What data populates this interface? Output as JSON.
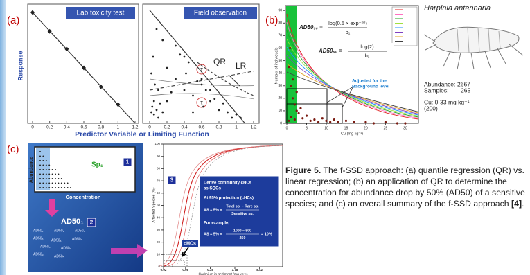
{
  "panels": {
    "a": {
      "label": "(a)",
      "x_label": "Predictor Variable or Limiting Function",
      "lab": {
        "type": "line",
        "title": "Lab toxicity test",
        "y_label": "Response",
        "x": [
          0,
          0.2,
          0.4,
          0.6,
          0.8,
          1.0
        ],
        "values": [
          1,
          0.83,
          0.67,
          0.5,
          0.33,
          0.17
        ],
        "xlim": [
          0,
          1.2
        ],
        "ylim": [
          0,
          1.05
        ],
        "xticks": [
          0,
          0.2,
          0.4,
          0.6,
          0.8,
          1,
          1.2
        ]
      },
      "field": {
        "type": "scatter",
        "title": "Field observation",
        "qr_label": "QR",
        "lr_label": "LR",
        "quantile_marks": [
          "τ",
          "τ"
        ],
        "x": [
          0.02,
          0.03,
          0.05,
          0.05,
          0.08,
          0.1,
          0.12,
          0.15,
          0.02,
          0.04,
          0.06,
          0.1,
          0.2,
          0.25,
          0.3,
          0.35,
          0.4,
          0.42,
          0.45,
          0.5,
          0.55,
          0.6,
          0.62,
          0.65,
          0.7,
          0.75,
          0.8,
          0.85,
          0.9,
          0.95,
          0.3,
          0.4,
          0.5,
          0.15,
          0.2,
          0.08,
          0.6,
          0.7,
          1.0,
          1.05
        ],
        "y": [
          0.1,
          0.15,
          0.08,
          0.2,
          0.12,
          0.05,
          0.18,
          0.1,
          0.45,
          0.6,
          0.35,
          0.3,
          0.5,
          0.28,
          0.4,
          0.62,
          0.3,
          0.45,
          0.55,
          0.25,
          0.38,
          0.35,
          0.15,
          0.3,
          0.2,
          0.22,
          0.12,
          0.18,
          0.1,
          0.05,
          0.7,
          0.6,
          0.1,
          0.75,
          0.2,
          0.85,
          0.4,
          0.3,
          0.08,
          0.05
        ],
        "xlim": [
          0,
          1.2
        ],
        "ylim": [
          0,
          1.05
        ],
        "xticks": [
          0,
          0.2,
          0.4,
          0.6,
          0.8,
          1,
          1.2
        ]
      }
    },
    "b": {
      "label": "(b)",
      "type": "scatter",
      "y_label": "Number of individuals",
      "x_label": "Cu (mg kg⁻¹)",
      "x": [
        0.5,
        1,
        1.5,
        2,
        2.5,
        1,
        2,
        0.5,
        3,
        4,
        5,
        6,
        7,
        8,
        9,
        10,
        11,
        12,
        13,
        15,
        17,
        20,
        22,
        25,
        28,
        30,
        1.5,
        2.5,
        3.5,
        0.8
      ],
      "y": [
        45,
        30,
        20,
        15,
        10,
        5,
        3,
        2,
        8,
        4,
        6,
        2,
        3,
        1,
        4,
        2,
        1,
        3,
        1,
        2,
        1,
        1,
        0,
        1,
        0,
        0,
        35,
        25,
        12,
        60
      ],
      "xlim": [
        0,
        33
      ],
      "ylim": [
        0,
        94
      ],
      "xticks": [
        0,
        5,
        10,
        15,
        20,
        25,
        30
      ],
      "yticks": [
        0,
        10,
        20,
        30,
        40,
        50,
        60,
        70,
        80,
        90
      ],
      "formula_1": {
        "lhs": "AD50₉₀ =",
        "numerator": "log(0.5 × exp⁻ᵇ⁰)",
        "denominator": "b₁"
      },
      "formula_2": {
        "lhs": "AD50₉₀ =",
        "numerator": "log(2)",
        "denominator": "b₁"
      },
      "annotation": [
        "Adjusted for the",
        "Background level"
      ],
      "species": {
        "name": "Harpinia antennaria",
        "abundance_label": "Abundance:",
        "abundance": 2667,
        "samples_label": "Samples:",
        "samples": 265,
        "cu": "Cu: 0-33 mg kg⁻¹",
        "count": "(200)"
      }
    },
    "c": {
      "label": "(c)",
      "step_1": {
        "number": 1,
        "species": "Sp₁",
        "y_label": "Abundance",
        "x_label": "Concentration"
      },
      "step_2": {
        "number": 2,
        "main": "AD50₁",
        "others": [
          "AD50₂",
          "AD50₃",
          "AD50₄",
          "AD50₅",
          "AD50₆",
          "AD50₇",
          "AD50₈",
          "AD50₉",
          "AD50₁₀",
          "AD50ₙ"
        ]
      },
      "step_3": {
        "number": 3,
        "type": "ssd",
        "y_label": "Affected Species (%)",
        "x_label": "Cadmium in sediment (mg kg⁻¹)",
        "ylim": [
          0,
          100
        ],
        "yticks": [
          0,
          10,
          20,
          30,
          40,
          50,
          60,
          70,
          80,
          90,
          100
        ],
        "xlim": [
          0.02,
          36
        ],
        "xticks": [
          0.02,
          0.08,
          0.38,
          1.78,
          8.42
        ],
        "log_x": true,
        "box_title": [
          "Derive community cHCs",
          "as SQGs"
        ],
        "box_protection": "At 95% protection (cHCs)",
        "box_example": "For example,",
        "formula_1": {
          "lhs": "AS = 5% ×",
          "numerator": "Total sp. – Rare sp.",
          "denominator": "Sensitive sp."
        },
        "formula_2": {
          "lhs": "AS = 5% ×",
          "numerator": "1000 – 500",
          "denominator": "250",
          "result": "= 10%"
        },
        "marker": "cHCs"
      }
    }
  },
  "caption": {
    "label": "Figure 5.",
    "text": " The f-SSD approach: (a) quantile regression (QR) vs. linear regression; (b) an application of QR to determine the concentration for abundance drop by 50% (AD50) of a sensitive species; and (c) an overall summary of the f-SSD approach ",
    "ref": "[4]",
    "end": "."
  }
}
